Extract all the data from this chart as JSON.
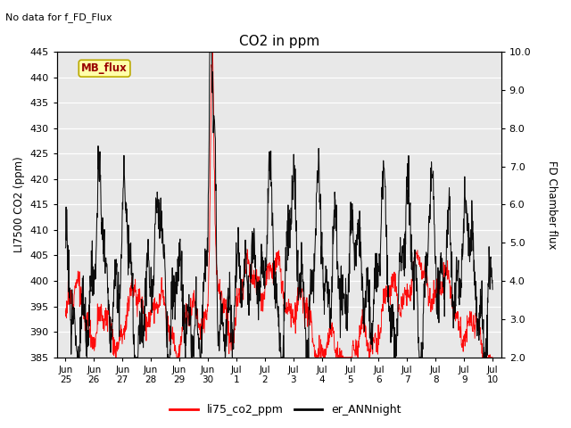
{
  "title": "CO2 in ppm",
  "top_left_text": "No data for f_FD_Flux",
  "ylabel_left": "LI7500 CO2 (ppm)",
  "ylabel_right": "FD Chamber flux",
  "ylim_left": [
    385,
    445
  ],
  "ylim_right": [
    2.0,
    10.0
  ],
  "yticks_left": [
    385,
    390,
    395,
    400,
    405,
    410,
    415,
    420,
    425,
    430,
    435,
    440,
    445
  ],
  "yticks_right": [
    2.0,
    3.0,
    4.0,
    5.0,
    6.0,
    7.0,
    8.0,
    9.0,
    10.0
  ],
  "xtick_labels": [
    "Jun\n25",
    "Jun\n26",
    "Jun\n27",
    "Jun\n28",
    "Jun\n29",
    "Jun\n30",
    "Jul\n1",
    "Jul\n2",
    "Jul\n3",
    "Jul\n4",
    "Jul\n5",
    "Jul\n6",
    "Jul\n7",
    "Jul\n8",
    "Jul\n9",
    "Jul\n10"
  ],
  "xtick_positions": [
    0,
    1,
    2,
    3,
    4,
    5,
    6,
    7,
    8,
    9,
    10,
    11,
    12,
    13,
    14,
    15
  ],
  "xlim": [
    -0.3,
    15.3
  ],
  "legend_entries": [
    "li75_co2_ppm",
    "er_ANNnight"
  ],
  "bg_color": "#e8e8e8",
  "mb_flux_label": "MB_flux",
  "mb_flux_bg": "#ffffaa",
  "mb_flux_border": "#bbaa00"
}
